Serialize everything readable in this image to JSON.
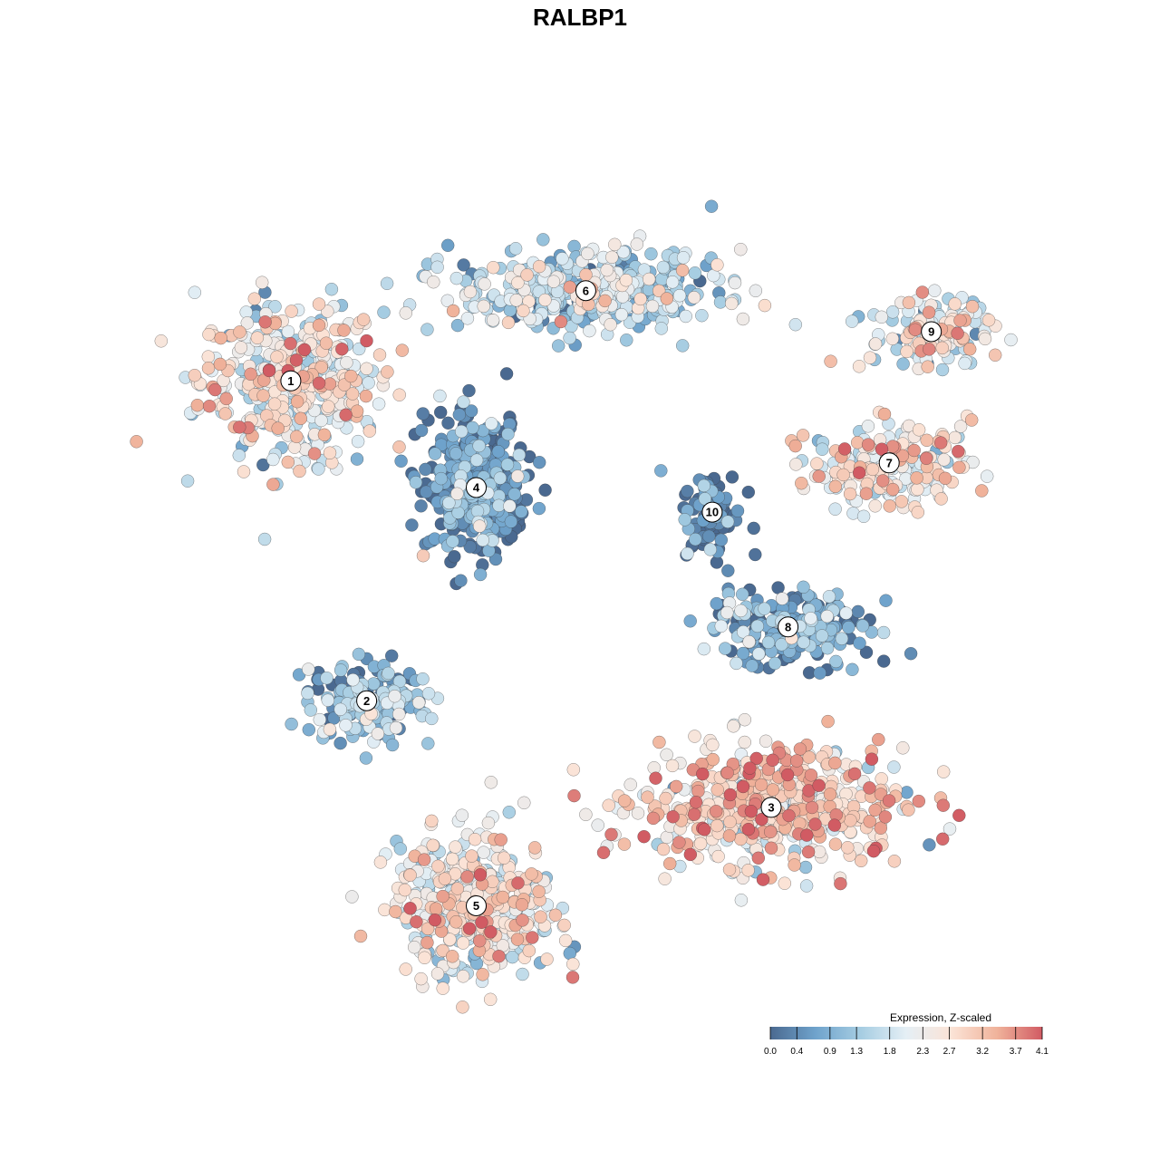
{
  "chart_data": {
    "type": "scatter",
    "title": "RALBP1",
    "xlabel": "",
    "ylabel": "",
    "grid": false,
    "legend_position": "bottom-right",
    "xlim": [
      0,
      1
    ],
    "ylim": [
      0,
      1
    ],
    "legend": {
      "title": "Expression, Z-scaled",
      "ticks": [
        "0.0",
        "0.4",
        "0.9",
        "1.3",
        "1.8",
        "2.3",
        "2.7",
        "3.2",
        "3.7",
        "4.1"
      ],
      "tick_values": [
        0.0,
        0.4,
        0.9,
        1.3,
        1.8,
        2.3,
        2.7,
        3.2,
        3.7,
        4.1
      ],
      "range": [
        0.0,
        4.1
      ],
      "colors": [
        "#4a6990",
        "#6fa3cc",
        "#a6cde2",
        "#e5eff5",
        "#fbe3d6",
        "#f0b39b",
        "#d15b63"
      ]
    },
    "clusters": [
      {
        "label": "1",
        "cx": 0.13,
        "cy": 0.74,
        "mean_expression": 2.3
      },
      {
        "label": "2",
        "cx": 0.22,
        "cy": 0.35,
        "mean_expression": 0.9
      },
      {
        "label": "3",
        "cx": 0.7,
        "cy": 0.22,
        "mean_expression": 2.7
      },
      {
        "label": "4",
        "cx": 0.35,
        "cy": 0.61,
        "mean_expression": 0.4
      },
      {
        "label": "5",
        "cx": 0.35,
        "cy": 0.1,
        "mean_expression": 2.3
      },
      {
        "label": "6",
        "cx": 0.48,
        "cy": 0.85,
        "mean_expression": 1.5
      },
      {
        "label": "7",
        "cx": 0.84,
        "cy": 0.64,
        "mean_expression": 2.4
      },
      {
        "label": "8",
        "cx": 0.72,
        "cy": 0.44,
        "mean_expression": 0.6
      },
      {
        "label": "9",
        "cx": 0.89,
        "cy": 0.8,
        "mean_expression": 2.2
      },
      {
        "label": "10",
        "cx": 0.63,
        "cy": 0.58,
        "mean_expression": 0.2
      }
    ]
  }
}
